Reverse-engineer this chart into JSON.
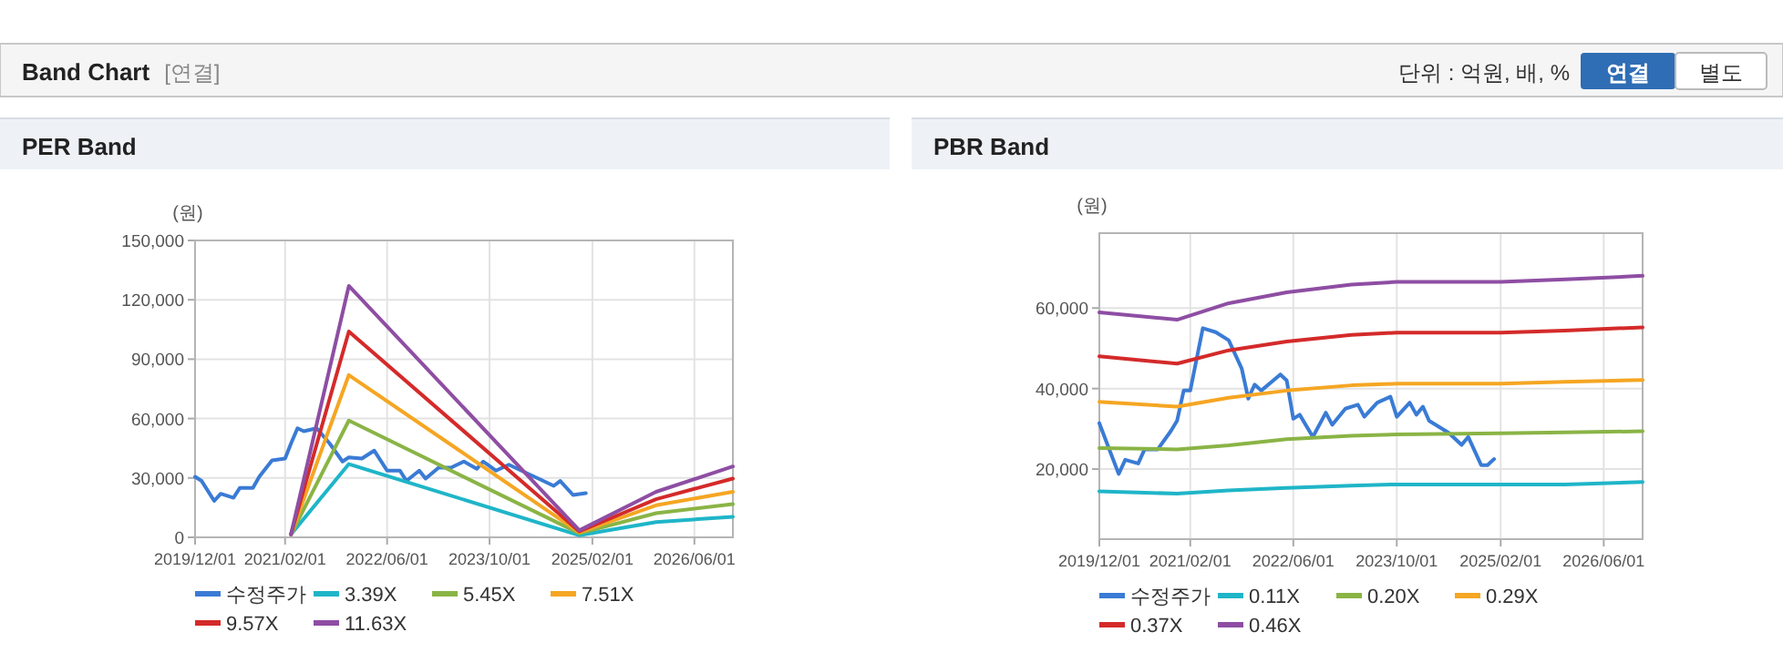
{
  "chart_data": [
    {
      "type": "other",
      "title": "Band Chart",
      "annotations": [
        "[연결]",
        "단위 : 억원, 배, %",
        "연결",
        "별도"
      ]
    },
    {
      "type": "line",
      "title": "PER Band",
      "ylabel": "(원)",
      "grid": true,
      "legend": "bottom",
      "xlim": [
        "2019-12",
        "2026-12"
      ],
      "xticks": [
        {
          "value": "2019-12-01",
          "label": "2019/12/01"
        },
        {
          "value": "2021-02-01",
          "label": "2021/02/01"
        },
        {
          "value": "2022-06-01",
          "label": "2022/06/01"
        },
        {
          "value": "2023-10-01",
          "label": "2023/10/01"
        },
        {
          "value": "2025-02-01",
          "label": "2025/02/01"
        },
        {
          "value": "2026-06-01",
          "label": "2026/06/01"
        }
      ],
      "ylim": [
        0,
        150000
      ],
      "yticks": [
        0,
        {
          "value": 30000,
          "label": "30,000"
        },
        {
          "value": 60000,
          "label": "60,000"
        },
        {
          "value": 90000,
          "label": "90,000"
        },
        {
          "value": 120000,
          "label": "120,000"
        },
        {
          "value": 150000,
          "label": "150,000"
        }
      ],
      "series": [
        {
          "name": "수정주가",
          "color": "#3a7bd5",
          "x": [
            "2019-12",
            "2020-01",
            "2020-03",
            "2020-04",
            "2020-06",
            "2020-07",
            "2020-09",
            "2020-10",
            "2020-12",
            "2021-02",
            "2021-03",
            "2021-04",
            "2021-05",
            "2021-07",
            "2021-09",
            "2021-11",
            "2021-12",
            "2022-02",
            "2022-04",
            "2022-06",
            "2022-08",
            "2022-09",
            "2022-11",
            "2022-12",
            "2023-02",
            "2023-04",
            "2023-06",
            "2023-08",
            "2023-09",
            "2023-11",
            "2024-01",
            "2024-04",
            "2024-06",
            "2024-08",
            "2024-09",
            "2024-11",
            "2025-01"
          ],
          "values": [
            30600,
            28500,
            18400,
            22000,
            20000,
            25000,
            25000,
            30600,
            38900,
            39800,
            47400,
            55100,
            53600,
            55100,
            47400,
            38300,
            40400,
            39800,
            43800,
            33700,
            33700,
            28500,
            33700,
            29700,
            35200,
            35200,
            38300,
            34600,
            38300,
            33700,
            36700,
            32100,
            29100,
            26000,
            28500,
            21400,
            22300
          ]
        },
        {
          "name": "3.39X",
          "color": "#1fb5c8",
          "x": [
            "2021-03",
            "2021-12",
            "2024-12",
            "2025-12",
            "2026-12"
          ],
          "values": [
            1500,
            37000,
            1000,
            7700,
            10400
          ]
        },
        {
          "name": "5.45X",
          "color": "#8ab446",
          "x": [
            "2021-03",
            "2021-12",
            "2024-12",
            "2025-12",
            "2026-12"
          ],
          "values": [
            1500,
            59000,
            2000,
            12200,
            16800
          ]
        },
        {
          "name": "7.51X",
          "color": "#f5a623",
          "x": [
            "2021-03",
            "2021-12",
            "2024-12",
            "2025-12",
            "2026-12"
          ],
          "values": [
            1500,
            82000,
            2500,
            16200,
            23000
          ]
        },
        {
          "name": "9.57X",
          "color": "#d42a2a",
          "x": [
            "2021-03",
            "2021-12",
            "2024-12",
            "2025-12",
            "2026-12"
          ],
          "values": [
            1500,
            104000,
            3000,
            19300,
            29700
          ]
        },
        {
          "name": "11.63X",
          "color": "#8e4ea3",
          "x": [
            "2021-03",
            "2021-12",
            "2024-12",
            "2025-12",
            "2026-12"
          ],
          "values": [
            1500,
            127000,
            3500,
            23000,
            35800
          ]
        }
      ]
    },
    {
      "type": "line",
      "title": "PBR Band",
      "ylabel": "(원)",
      "grid": true,
      "legend": "bottom",
      "xlim": [
        "2019-12",
        "2026-12"
      ],
      "xticks": [
        {
          "value": "2019-12-01",
          "label": "2019/12/01"
        },
        {
          "value": "2021-02-01",
          "label": "2021/02/01"
        },
        {
          "value": "2022-06-01",
          "label": "2022/06/01"
        },
        {
          "value": "2023-10-01",
          "label": "2023/10/01"
        },
        {
          "value": "2025-02-01",
          "label": "2025/02/01"
        },
        {
          "value": "2026-06-01",
          "label": "2026/06/01"
        }
      ],
      "ylim": [
        2600,
        78600
      ],
      "yticks": [
        {
          "value": 20000,
          "label": "20,000"
        },
        {
          "value": 40000,
          "label": "40,000"
        },
        {
          "value": 60000,
          "label": "60,000"
        }
      ],
      "series": [
        {
          "name": "수정주가",
          "color": "#3a7bd5",
          "x": [
            "2019-12",
            "2020-01",
            "2020-03",
            "2020-04",
            "2020-06",
            "2020-07",
            "2020-09",
            "2020-11",
            "2020-12",
            "2021-01",
            "2021-02",
            "2021-04",
            "2021-06",
            "2021-08",
            "2021-10",
            "2021-11",
            "2021-12",
            "2022-01",
            "2022-04",
            "2022-05",
            "2022-06",
            "2022-07",
            "2022-09",
            "2022-11",
            "2022-12",
            "2023-02",
            "2023-04",
            "2023-05",
            "2023-07",
            "2023-09",
            "2023-10",
            "2023-12",
            "2024-01",
            "2024-02",
            "2024-03",
            "2024-06",
            "2024-08",
            "2024-09",
            "2024-11",
            "2024-12",
            "2025-01"
          ],
          "values": [
            31400,
            27100,
            18800,
            22300,
            21400,
            24900,
            24900,
            29400,
            32000,
            39500,
            39500,
            55000,
            54000,
            52000,
            45000,
            37500,
            41000,
            39500,
            43500,
            42000,
            32500,
            33500,
            28000,
            34000,
            31000,
            35000,
            36000,
            33000,
            36500,
            38000,
            33000,
            36500,
            33500,
            35500,
            32000,
            29000,
            26000,
            28000,
            21000,
            21000,
            22500
          ]
        },
        {
          "name": "0.11X",
          "color": "#1fb5c8",
          "x": [
            "2019-12",
            "2020-12",
            "2021-08",
            "2022-05",
            "2023-03",
            "2023-10",
            "2025-02",
            "2025-12",
            "2026-12"
          ],
          "values": [
            14500,
            13900,
            14700,
            15300,
            15900,
            16200,
            16200,
            16200,
            16800
          ]
        },
        {
          "name": "0.20X",
          "color": "#8ab446",
          "x": [
            "2019-12",
            "2020-12",
            "2021-08",
            "2022-05",
            "2023-03",
            "2023-10",
            "2025-02",
            "2025-12",
            "2026-12"
          ],
          "values": [
            25200,
            24900,
            25900,
            27400,
            28300,
            28600,
            28900,
            29100,
            29400
          ]
        },
        {
          "name": "0.29X",
          "color": "#f5a623",
          "x": [
            "2019-12",
            "2020-12",
            "2021-08",
            "2022-05",
            "2023-03",
            "2023-10",
            "2025-02",
            "2025-12",
            "2026-12"
          ],
          "values": [
            36700,
            35500,
            37700,
            39500,
            40800,
            41200,
            41200,
            41700,
            42100
          ]
        },
        {
          "name": "0.37X",
          "color": "#d42a2a",
          "x": [
            "2019-12",
            "2020-12",
            "2021-08",
            "2022-05",
            "2023-03",
            "2023-10",
            "2025-02",
            "2025-12",
            "2026-12"
          ],
          "values": [
            48000,
            46200,
            49500,
            51700,
            53300,
            53900,
            53900,
            54400,
            55200
          ]
        },
        {
          "name": "0.46X",
          "color": "#8e4ea3",
          "x": [
            "2019-12",
            "2020-12",
            "2021-08",
            "2022-05",
            "2023-03",
            "2023-10",
            "2025-02",
            "2025-12",
            "2026-12"
          ],
          "values": [
            58900,
            57100,
            61200,
            63900,
            65800,
            66500,
            66500,
            67100,
            68000
          ]
        }
      ]
    }
  ]
}
